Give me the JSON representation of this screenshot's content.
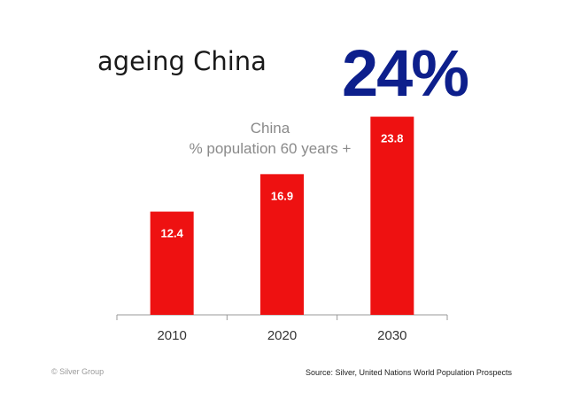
{
  "slide": {
    "title": "ageing China",
    "big_stat": "24%",
    "footer_left": "© Silver Group",
    "footer_right": "Source: Silver, United Nations World Population Prospects"
  },
  "colors": {
    "bar": "#ee1111",
    "title": "#1a1a1a",
    "big_stat": "#0d1f8c",
    "chart_title": "#8a8a8a",
    "axis": "#999999",
    "data_label": "#ffffff"
  },
  "chart_data": {
    "type": "bar",
    "title_lines": [
      "China",
      "% population 60 years +"
    ],
    "categories": [
      "2010",
      "2020",
      "2030"
    ],
    "values": [
      12.4,
      16.9,
      23.8
    ],
    "data_labels": [
      "12.4",
      "16.9",
      "23.8"
    ],
    "ylim": [
      0,
      24.5
    ],
    "grid": false,
    "legend": "none"
  }
}
